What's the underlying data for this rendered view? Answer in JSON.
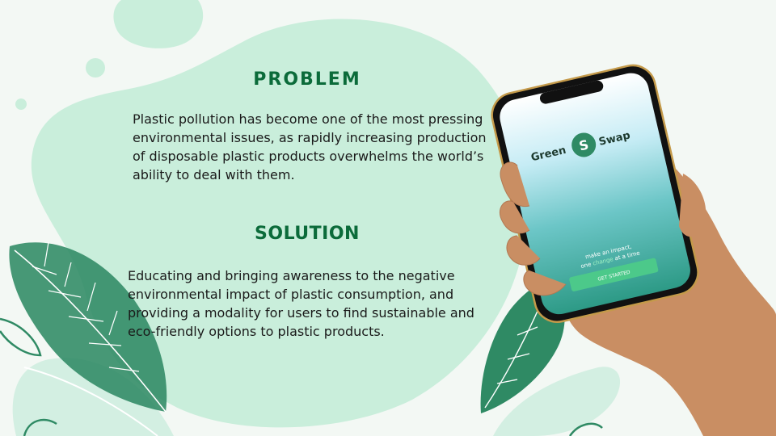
{
  "slide": {
    "problem": {
      "heading": "PROBLEM",
      "body": "Plastic pollution has become one of the most pressing environmental issues, as rapidly increasing production of disposable plastic products overwhelms the world’s ability to deal with them."
    },
    "solution": {
      "heading": "SOLUTION",
      "body": "Educating and bringing awareness to the negative environmental impact of plastic consumption, and providing a modality for users to find sustainable and eco-friendly options to plastic products."
    }
  },
  "app": {
    "logo_left": "Green",
    "logo_right": "Swap",
    "tagline_line1": "make an impact,",
    "tagline_prefix": "one",
    "tagline_highlight": "change",
    "tagline_suffix": "at a time",
    "cta_label": "GET STARTED"
  },
  "colors": {
    "background": "#f3f8f4",
    "blob": "#c9eedb",
    "heading": "#0b6b3a",
    "leaf_dark": "#2f8a64",
    "leaf_light": "#cfeee0",
    "cta": "#4cc98a"
  }
}
